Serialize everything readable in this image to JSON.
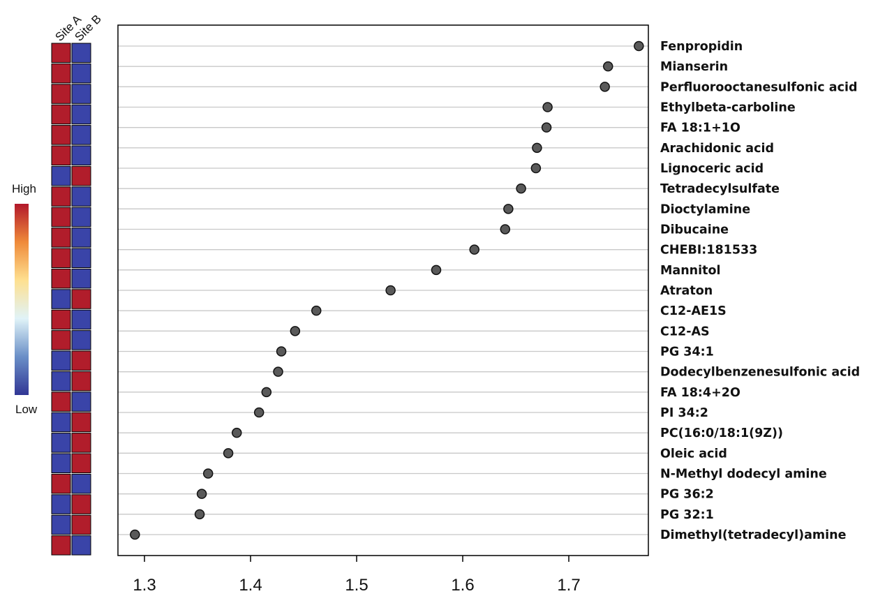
{
  "chart_data": {
    "type": "scatter",
    "style": "dot-plot with heatmap",
    "heatmap_columns": [
      "Site A",
      "Site B"
    ],
    "legend": {
      "high_label": "High",
      "low_label": "Low",
      "colors": [
        "#b2182b",
        "#ef8a3a",
        "#fee090",
        "#e0f3f8",
        "#6a8fc7",
        "#313695"
      ]
    },
    "x_ticks": [
      1.3,
      1.4,
      1.5,
      1.6,
      1.7
    ],
    "xlim": [
      1.275,
      1.775
    ],
    "colors": {
      "high": "#b11d2b",
      "low": "#3a44a8",
      "point": "#5a5a5a",
      "grid": "#c8c8c8"
    },
    "rows": [
      {
        "label": "Fenpropidin",
        "value": 1.766,
        "site_a": "high",
        "site_b": "low"
      },
      {
        "label": "Mianserin",
        "value": 1.737,
        "site_a": "high",
        "site_b": "low"
      },
      {
        "label": "Perfluorooctanesulfonic acid",
        "value": 1.734,
        "site_a": "high",
        "site_b": "low"
      },
      {
        "label": "Ethylbeta-carboline",
        "value": 1.68,
        "site_a": "high",
        "site_b": "low"
      },
      {
        "label": "FA 18:1+1O",
        "value": 1.679,
        "site_a": "high",
        "site_b": "low"
      },
      {
        "label": "Arachidonic acid",
        "value": 1.67,
        "site_a": "high",
        "site_b": "low"
      },
      {
        "label": "Lignoceric acid",
        "value": 1.669,
        "site_a": "low",
        "site_b": "high"
      },
      {
        "label": "Tetradecylsulfate",
        "value": 1.655,
        "site_a": "high",
        "site_b": "low"
      },
      {
        "label": "Dioctylamine",
        "value": 1.643,
        "site_a": "high",
        "site_b": "low"
      },
      {
        "label": "Dibucaine",
        "value": 1.64,
        "site_a": "high",
        "site_b": "low"
      },
      {
        "label": "CHEBI:181533",
        "value": 1.611,
        "site_a": "high",
        "site_b": "low"
      },
      {
        "label": "Mannitol",
        "value": 1.575,
        "site_a": "high",
        "site_b": "low"
      },
      {
        "label": "Atraton",
        "value": 1.532,
        "site_a": "low",
        "site_b": "high"
      },
      {
        "label": "C12-AE1S",
        "value": 1.462,
        "site_a": "high",
        "site_b": "low"
      },
      {
        "label": "C12-AS",
        "value": 1.442,
        "site_a": "high",
        "site_b": "low"
      },
      {
        "label": "PG 34:1",
        "value": 1.429,
        "site_a": "low",
        "site_b": "high"
      },
      {
        "label": "Dodecylbenzenesulfonic acid",
        "value": 1.426,
        "site_a": "low",
        "site_b": "high"
      },
      {
        "label": "FA 18:4+2O",
        "value": 1.415,
        "site_a": "high",
        "site_b": "low"
      },
      {
        "label": "PI 34:2",
        "value": 1.408,
        "site_a": "low",
        "site_b": "high"
      },
      {
        "label": "PC(16:0/18:1(9Z))",
        "value": 1.387,
        "site_a": "low",
        "site_b": "high"
      },
      {
        "label": "Oleic acid",
        "value": 1.379,
        "site_a": "low",
        "site_b": "high"
      },
      {
        "label": "N-Methyl dodecyl amine",
        "value": 1.36,
        "site_a": "high",
        "site_b": "low"
      },
      {
        "label": "PG 36:2",
        "value": 1.354,
        "site_a": "low",
        "site_b": "high"
      },
      {
        "label": "PG 32:1",
        "value": 1.352,
        "site_a": "low",
        "site_b": "high"
      },
      {
        "label": "Dimethyl(tetradecyl)amine",
        "value": 1.291,
        "site_a": "high",
        "site_b": "low"
      }
    ]
  }
}
